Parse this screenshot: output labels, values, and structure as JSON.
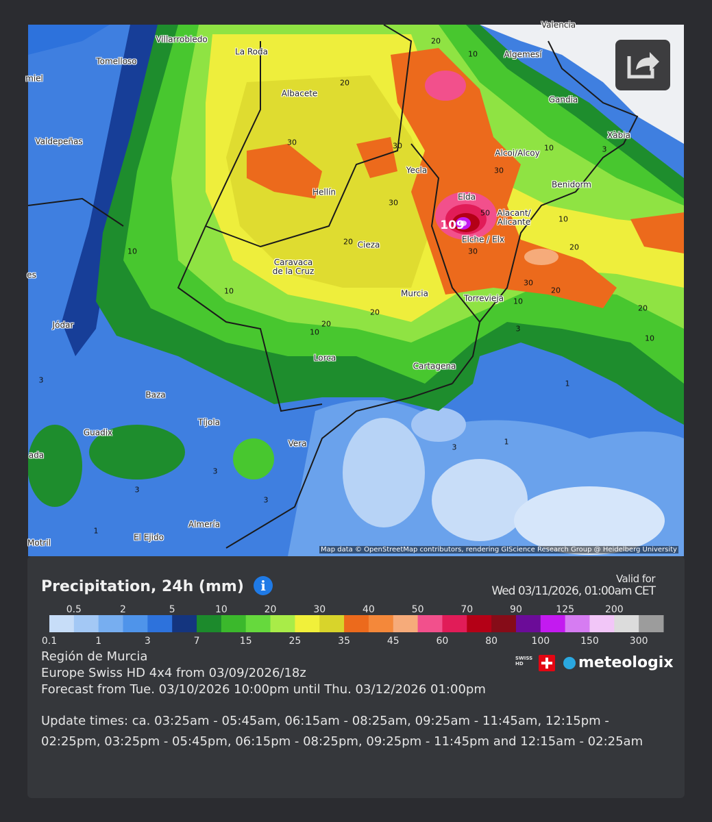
{
  "map": {
    "cities": [
      "Villarrobledo",
      "La Roda",
      "Tomelloso",
      "miel",
      "Albacete",
      "Valdepeñas",
      "Hellín",
      "Yecla",
      "Alcoi/Alcoy",
      "Benidorm",
      "Xàbia",
      "Gandia",
      "Algemesí",
      "Valencia",
      "Elda",
      "Alacant/ Alicante",
      "Elche / Elx",
      "Cieza",
      "Caravaca de la Cruz",
      "Murcia",
      "Torrevieja",
      "Jódar",
      "Lorca",
      "Cartagena",
      "Baza",
      "Tíjola",
      "Guadix",
      "Vera",
      "ada",
      "Almería",
      "El Ejido",
      "Motril",
      "es"
    ],
    "contours": [
      "20",
      "10",
      "20",
      "30",
      "30",
      "10",
      "3",
      "30",
      "30",
      "50",
      "10",
      "20",
      "20",
      "30",
      "10",
      "30",
      "20",
      "10",
      "10",
      "20",
      "20",
      "20",
      "10",
      "3",
      "10",
      "3",
      "1",
      "3",
      "1",
      "3",
      "3",
      "3",
      "1"
    ],
    "peak": "109",
    "attribution": "Map data © OpenStreetMap contributors, rendering GIScience Research Group @ Heidelberg University"
  },
  "legend": {
    "title": "Precipitation, 24h (mm)",
    "valid_label": "Valid for",
    "valid_time": "Wed 03/11/2026, 01:00am CET",
    "thresholds": [
      0.1,
      0.5,
      1,
      2,
      3,
      5,
      7,
      10,
      15,
      20,
      25,
      30,
      35,
      40,
      45,
      50,
      60,
      70,
      80,
      90,
      100,
      125,
      150,
      200,
      300
    ],
    "colors": [
      "#c7ddf8",
      "#a3c8f5",
      "#77aef0",
      "#4f94ea",
      "#2d72dc",
      "#14357f",
      "#1c8a2c",
      "#3bb82c",
      "#66d93d",
      "#a9ec48",
      "#f1f03a",
      "#d8d42b",
      "#ec6a1c",
      "#f4883a",
      "#f6ab7a",
      "#f2508c",
      "#e11c58",
      "#b40016",
      "#860c18",
      "#6b0c98",
      "#c31af0",
      "#d67cf2",
      "#f2c6f8",
      "#dcdcdc",
      "#9c9c9c"
    ]
  },
  "info": {
    "region": "Región de Murcia",
    "model": "Europe Swiss HD 4x4 from 03/09/2026/18z",
    "forecast": "Forecast from Tue. 03/10/2026 10:00pm until Thu. 03/12/2026 01:00pm",
    "update_times": "Update times: ca. 03:25am - 05:45am, 06:15am - 08:25am, 09:25am - 11:45am, 12:15pm - 02:25pm, 03:25pm - 05:45pm, 06:15pm - 08:25pm, 09:25pm - 11:45pm and 12:15am - 02:25am"
  },
  "brand": {
    "badge": "SWISS HD",
    "logo": "meteologix"
  }
}
